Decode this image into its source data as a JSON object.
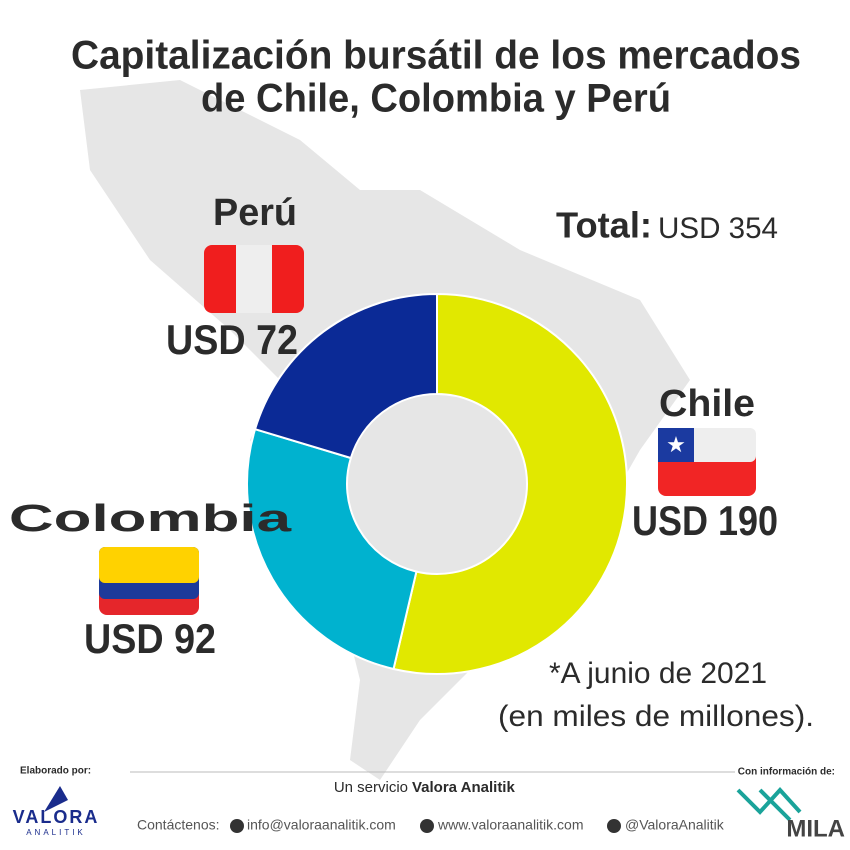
{
  "chart_data": {
    "type": "donut",
    "title": [
      "Capitalización bursátil de los mercados",
      "de Chile, Colombia y Perú"
    ],
    "total_label": "Total:",
    "total_value": "USD 354",
    "categories": [
      "Chile",
      "Colombia",
      "Perú"
    ],
    "values": [
      190,
      92,
      72
    ],
    "value_labels": [
      "USD 190",
      "USD 92",
      "USD 72"
    ],
    "colors": [
      "#e1e800",
      "#00b2cf",
      "#0b2a96"
    ],
    "note": [
      "*A junio de 2021",
      "(en miles de millones)."
    ]
  },
  "footer": {
    "made_by": "Elaborado por:",
    "brand": "VALORA",
    "brand_sub": "ANALITIK",
    "service_prefix": "Un servicio",
    "service_name": "Valora Analitik",
    "contact": "Contáctenos:",
    "email": "info@valoraanalitik.com",
    "web": "www.valoraanalitik.com",
    "twitter": "@ValoraAnalitik",
    "source_label": "Con información de:",
    "source": "MILA"
  }
}
